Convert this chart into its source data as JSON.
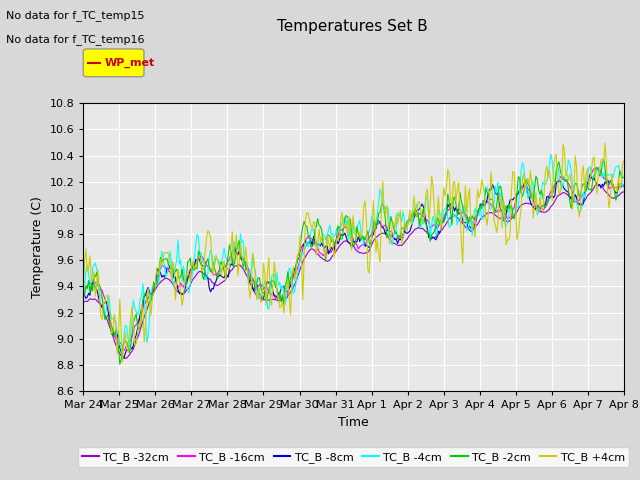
{
  "title": "Temperatures Set B",
  "xlabel": "Time",
  "ylabel": "Temperature (C)",
  "ylim": [
    8.6,
    10.8
  ],
  "yticks": [
    8.6,
    8.8,
    9.0,
    9.2,
    9.4,
    9.6,
    9.8,
    10.0,
    10.2,
    10.4,
    10.6,
    10.8
  ],
  "xtick_labels": [
    "Mar 24",
    "Mar 25",
    "Mar 26",
    "Mar 27",
    "Mar 28",
    "Mar 29",
    "Mar 30",
    "Mar 31",
    "Apr 1",
    "Apr 2",
    "Apr 3",
    "Apr 4",
    "Apr 5",
    "Apr 6",
    "Apr 7",
    "Apr 8"
  ],
  "series_labels": [
    "TC_B -32cm",
    "TC_B -16cm",
    "TC_B -8cm",
    "TC_B -4cm",
    "TC_B -2cm",
    "TC_B +4cm"
  ],
  "series_colors": [
    "#9900cc",
    "#ff00ff",
    "#0000cc",
    "#00ffff",
    "#00cc00",
    "#cccc00"
  ],
  "legend_wp_met_color": "#cc0000",
  "legend_wp_met_bg": "#ffff00",
  "annotation_lines": [
    "No data for f_TC_temp15",
    "No data for f_TC_temp16"
  ],
  "n_points": 400,
  "seed": 42,
  "background_color": "#d8d8d8",
  "plot_bg_color": "#e8e8e8"
}
